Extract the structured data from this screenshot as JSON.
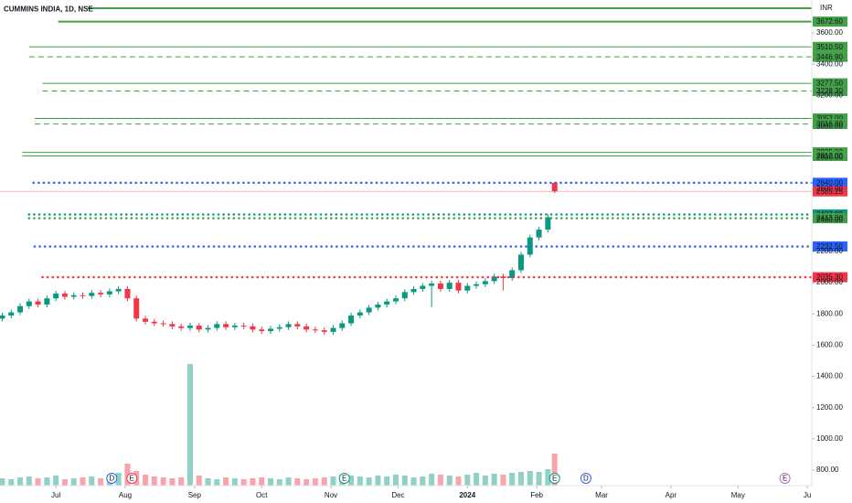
{
  "chart_data": {
    "type": "candlestick",
    "title": "CUMMINS INDIA, 1D, NSE",
    "currency": "INR",
    "up_color": "#089981",
    "down_color": "#f23645",
    "xlim": [
      5,
      368
    ],
    "xticks": [
      {
        "value": 30,
        "label": "Jul"
      },
      {
        "value": 61,
        "label": "Aug"
      },
      {
        "value": 92,
        "label": "Sep"
      },
      {
        "value": 122,
        "label": "Oct"
      },
      {
        "value": 153,
        "label": "Nov"
      },
      {
        "value": 183,
        "label": "Dec"
      },
      {
        "value": 214,
        "label": "2024",
        "bold": true
      },
      {
        "value": 245,
        "label": "Feb"
      },
      {
        "value": 274,
        "label": "Mar"
      },
      {
        "value": 305,
        "label": "Apr"
      },
      {
        "value": 335,
        "label": "May"
      },
      {
        "value": 366,
        "label": "Ju"
      }
    ],
    "ylim": [
      706,
      3811
    ],
    "yticks": [
      {
        "value": 800,
        "label": "800.00"
      },
      {
        "value": 1000,
        "label": "1000.00"
      },
      {
        "value": 1200,
        "label": "1200.00"
      },
      {
        "value": 1400,
        "label": "1400.00"
      },
      {
        "value": 1600,
        "label": "1600.00"
      },
      {
        "value": 1800,
        "label": "1800.00"
      },
      {
        "value": 2000,
        "label": "2000.00"
      },
      {
        "value": 2200,
        "label": "2200.00"
      },
      {
        "value": 2400,
        "label": "2400.00"
      },
      {
        "value": 2600,
        "label": "2600.00"
      },
      {
        "value": 2800,
        "label": "2800.00"
      },
      {
        "value": 3000,
        "label": "3000.00"
      },
      {
        "value": 3200,
        "label": "3200.00"
      },
      {
        "value": 3400,
        "label": "3400.00"
      },
      {
        "value": 3600,
        "label": "3600.00"
      }
    ],
    "volume_lim": [
      0,
      140
    ],
    "x": [
      6,
      10,
      14,
      18,
      22,
      26,
      30,
      34,
      38,
      42,
      46,
      50,
      54,
      58,
      62,
      66,
      70,
      74,
      78,
      82,
      86,
      90,
      94,
      98,
      102,
      106,
      110,
      114,
      118,
      122,
      126,
      130,
      134,
      138,
      142,
      146,
      150,
      154,
      158,
      162,
      166,
      170,
      174,
      178,
      182,
      186,
      190,
      194,
      198,
      202,
      206,
      210,
      214,
      218,
      222,
      226,
      230,
      234,
      238,
      242,
      246,
      250,
      253
    ],
    "open": [
      1770,
      1790,
      1810,
      1850,
      1880,
      1860,
      1900,
      1930,
      1910,
      1920,
      1915,
      1935,
      1925,
      1945,
      1960,
      1900,
      1770,
      1750,
      1740,
      1735,
      1720,
      1710,
      1725,
      1700,
      1710,
      1735,
      1715,
      1725,
      1720,
      1700,
      1690,
      1705,
      1715,
      1735,
      1720,
      1700,
      1695,
      1685,
      1710,
      1740,
      1790,
      1810,
      1840,
      1860,
      1880,
      1900,
      1940,
      1960,
      1980,
      1995,
      1960,
      2000,
      1950,
      1980,
      1990,
      2010,
      2040,
      2030,
      2080,
      2180,
      2290,
      2340,
      2640
    ],
    "high": [
      1808,
      1828,
      1868,
      1898,
      1898,
      1918,
      1948,
      1948,
      1938,
      1938,
      1953,
      1953,
      1963,
      1978,
      1978,
      1918,
      1788,
      1768,
      1758,
      1753,
      1738,
      1743,
      1743,
      1728,
      1753,
      1753,
      1743,
      1743,
      1738,
      1718,
      1723,
      1733,
      1753,
      1753,
      1738,
      1718,
      1713,
      1728,
      1758,
      1808,
      1828,
      1858,
      1878,
      1898,
      1918,
      1958,
      1978,
      1998,
      2013,
      2013,
      2018,
      2018,
      1998,
      2008,
      2028,
      2058,
      2058,
      2098,
      2198,
      2308,
      2358,
      2438,
      2645
    ],
    "low": [
      1752,
      1772,
      1792,
      1832,
      1842,
      1842,
      1882,
      1892,
      1892,
      1897,
      1897,
      1907,
      1907,
      1927,
      1882,
      1752,
      1732,
      1722,
      1717,
      1702,
      1692,
      1692,
      1682,
      1682,
      1692,
      1697,
      1697,
      1702,
      1682,
      1672,
      1672,
      1687,
      1697,
      1702,
      1682,
      1677,
      1667,
      1667,
      1692,
      1722,
      1772,
      1792,
      1822,
      1842,
      1862,
      1882,
      1922,
      1942,
      1845,
      1942,
      1942,
      1932,
      1932,
      1962,
      1972,
      1992,
      1950,
      2012,
      2062,
      2162,
      2272,
      2322,
      2575
    ],
    "close": [
      1790,
      1810,
      1850,
      1880,
      1860,
      1900,
      1930,
      1910,
      1920,
      1915,
      1935,
      1925,
      1945,
      1960,
      1900,
      1770,
      1750,
      1740,
      1735,
      1720,
      1710,
      1725,
      1700,
      1710,
      1735,
      1715,
      1725,
      1720,
      1700,
      1690,
      1705,
      1715,
      1735,
      1720,
      1700,
      1695,
      1685,
      1710,
      1740,
      1790,
      1810,
      1840,
      1860,
      1880,
      1900,
      1940,
      1960,
      1980,
      1995,
      1960,
      2000,
      1950,
      1980,
      1990,
      2010,
      2040,
      2030,
      2080,
      2180,
      2290,
      2340,
      2420,
      2585.25
    ],
    "volume": [
      8,
      7,
      9,
      10,
      8,
      9,
      11,
      7,
      8,
      9,
      10,
      8,
      12,
      14,
      24,
      16,
      12,
      10,
      9,
      8,
      9,
      133,
      11,
      8,
      7,
      9,
      8,
      7,
      8,
      9,
      8,
      7,
      9,
      8,
      7,
      8,
      9,
      10,
      12,
      11,
      10,
      9,
      11,
      10,
      12,
      11,
      9,
      10,
      13,
      12,
      11,
      10,
      12,
      14,
      11,
      13,
      12,
      14,
      15,
      16,
      15,
      18,
      35
    ],
    "levels": [
      {
        "value": 3758,
        "color": "#43a047",
        "style": "thick",
        "from": 31
      },
      {
        "value": 3672.6,
        "label": "3672.60",
        "color": "#43a047",
        "style": "thick",
        "from": 31
      },
      {
        "value": 3510.5,
        "label": "3510.50",
        "color": "#43a047",
        "style": "solid",
        "from": 18
      },
      {
        "value": 3446.9,
        "label": "3446.90",
        "color": "#43a047",
        "style": "dashed",
        "from": 18
      },
      {
        "value": 3277.5,
        "label": "3277.50",
        "color": "#43a047",
        "style": "solid",
        "from": 24
      },
      {
        "value": 3228.3,
        "label": "3228.30",
        "color": "#43a047",
        "style": "dashed",
        "from": 24
      },
      {
        "value": 3052,
        "label": "3052.00",
        "color": "#43a047",
        "style": "solid",
        "from": 20.5
      },
      {
        "value": 3016.8,
        "label": "3016.80",
        "color": "#43a047",
        "style": "dashed",
        "from": 20.5
      },
      {
        "value": 2835,
        "label": "2835.00",
        "color": "#43a047",
        "style": "solid",
        "from": 15
      },
      {
        "value": 2812,
        "label": "2812.00",
        "color": "#43a047",
        "style": "solid",
        "from": 15
      },
      {
        "value": 2640,
        "label": "2640.00",
        "color": "#2962ff",
        "style": "dotted",
        "from": 20
      },
      {
        "value": 2585.25,
        "label": "2585.25",
        "color": "#f23645",
        "style": "thin",
        "from": 5
      },
      {
        "value": 2437,
        "label": "2437.00",
        "color": "#089981",
        "style": "dotted",
        "from": 18
      },
      {
        "value": 2413,
        "label": "2413.00",
        "color": "#43a047",
        "style": "dotted",
        "from": 18
      },
      {
        "value": 2232.5,
        "label": "2232.50",
        "color": "#2962ff",
        "style": "dotted",
        "from": 20.5
      },
      {
        "value": 2035.3,
        "label": "2035.30",
        "color": "#f23645",
        "style": "dotted",
        "from": 24
      }
    ],
    "events": [
      {
        "day": 55,
        "label": "D",
        "color": "#2962ff"
      },
      {
        "day": 64,
        "label": "E",
        "color": "#f23645"
      },
      {
        "day": 159,
        "label": "E",
        "color": "#089981"
      },
      {
        "day": 253,
        "label": "E",
        "color": "#089981"
      },
      {
        "day": 267,
        "label": "D",
        "color": "#2962ff"
      },
      {
        "day": 356,
        "label": "E",
        "color": "#ba68c8"
      }
    ]
  }
}
